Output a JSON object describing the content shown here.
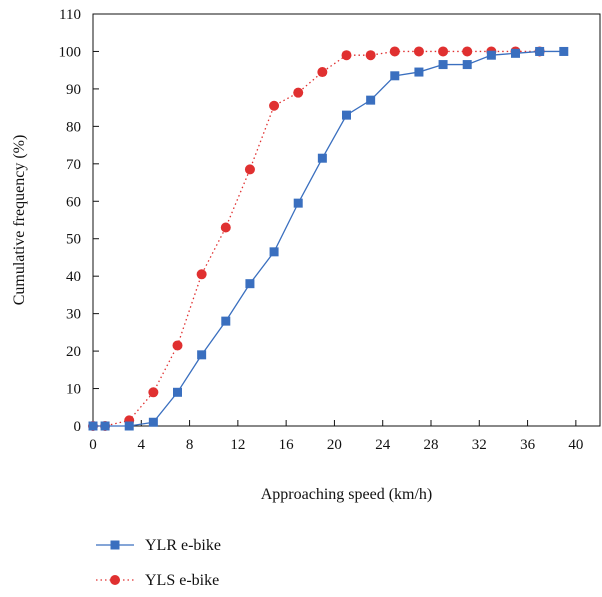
{
  "chart_data": {
    "type": "line",
    "title": "",
    "xlabel": "Approaching speed (km/h)",
    "ylabel": "Cumulative frequency (%)",
    "xlim": [
      0,
      42
    ],
    "ylim": [
      0,
      110
    ],
    "xticks": [
      0,
      4,
      8,
      12,
      16,
      20,
      24,
      28,
      32,
      36,
      40
    ],
    "yticks": [
      0,
      10,
      20,
      30,
      40,
      50,
      60,
      70,
      80,
      90,
      100,
      110
    ],
    "grid": false,
    "legend_position": "bottom-left",
    "series": [
      {
        "name": "YLR e-bike",
        "color": "#3a6fbf",
        "marker": "square",
        "line_style": "solid",
        "x": [
          0,
          1,
          3,
          5,
          7,
          9,
          11,
          13,
          15,
          17,
          19,
          21,
          23,
          25,
          27,
          29,
          31,
          33,
          35,
          37,
          39
        ],
        "y": [
          0,
          0,
          0,
          1,
          9,
          19,
          28,
          38,
          46.5,
          59.5,
          71.5,
          83,
          87,
          93.5,
          94.5,
          96.5,
          96.5,
          99,
          99.5,
          100,
          100
        ]
      },
      {
        "name": "YLS e-bike",
        "color": "#e03030",
        "marker": "circle",
        "line_style": "dotted",
        "x": [
          0,
          1,
          3,
          5,
          7,
          9,
          11,
          13,
          15,
          17,
          19,
          21,
          23,
          25,
          27,
          29,
          31,
          33,
          35,
          37
        ],
        "y": [
          0,
          0,
          1.5,
          9,
          21.5,
          40.5,
          53,
          68.5,
          85.5,
          89,
          94.5,
          99,
          99,
          100,
          100,
          100,
          100,
          100,
          100,
          100
        ]
      }
    ]
  }
}
